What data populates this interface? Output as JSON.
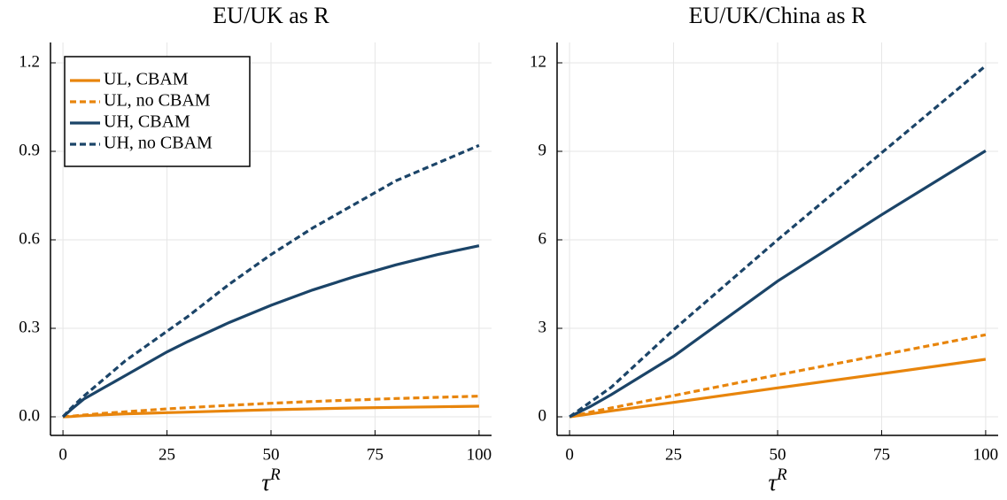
{
  "chart_data": [
    {
      "type": "line",
      "title": "EU/UK as R",
      "xlabel": "τ",
      "xlabel_superscript": "R",
      "x": [
        0,
        2,
        5,
        10,
        15,
        20,
        25,
        30,
        40,
        50,
        60,
        70,
        80,
        90,
        100
      ],
      "xlim": [
        -3,
        103
      ],
      "xticks": [
        0,
        25,
        50,
        75,
        100
      ],
      "ylim": [
        -0.063,
        1.269
      ],
      "yticks": [
        {
          "value": 0,
          "label": "0.0"
        },
        0.3,
        0.6,
        0.9,
        1.2
      ],
      "grid": true,
      "legend": "top-left",
      "series": [
        {
          "name": "UL, CBAM",
          "color": "#e8850c",
          "dash": false,
          "values": [
            0,
            0.001,
            0.004,
            0.007,
            0.01,
            0.012,
            0.014,
            0.016,
            0.02,
            0.024,
            0.027,
            0.03,
            0.032,
            0.034,
            0.036
          ]
        },
        {
          "name": "UL, no CBAM",
          "color": "#e8850c",
          "dash": true,
          "values": [
            0,
            0.002,
            0.006,
            0.012,
            0.017,
            0.022,
            0.027,
            0.031,
            0.039,
            0.046,
            0.052,
            0.057,
            0.062,
            0.066,
            0.07
          ]
        },
        {
          "name": "UH, CBAM",
          "color": "#1b4468",
          "dash": false,
          "values": [
            0,
            0.025,
            0.06,
            0.1,
            0.14,
            0.18,
            0.22,
            0.255,
            0.32,
            0.378,
            0.43,
            0.475,
            0.515,
            0.55,
            0.58
          ]
        },
        {
          "name": "UH, no CBAM",
          "color": "#1b4468",
          "dash": true,
          "values": [
            0,
            0.03,
            0.07,
            0.13,
            0.19,
            0.24,
            0.29,
            0.34,
            0.45,
            0.55,
            0.64,
            0.72,
            0.8,
            0.86,
            0.92
          ]
        }
      ]
    },
    {
      "type": "line",
      "title": "EU/UK/China as R",
      "xlabel": "τ",
      "xlabel_superscript": "R",
      "x": [
        0,
        5,
        10,
        25,
        50,
        75,
        100
      ],
      "xlim": [
        -3,
        103
      ],
      "xticks": [
        0,
        25,
        50,
        75,
        100
      ],
      "ylim": [
        -0.63,
        12.69
      ],
      "yticks": [
        0,
        3,
        6,
        9,
        12
      ],
      "grid": true,
      "series": [
        {
          "color": "#e8850c",
          "dash": false,
          "values": [
            0,
            0.1,
            0.2,
            0.49,
            0.98,
            1.46,
            1.95
          ]
        },
        {
          "color": "#e8850c",
          "dash": true,
          "values": [
            0,
            0.16,
            0.3,
            0.72,
            1.42,
            2.1,
            2.78
          ]
        },
        {
          "color": "#1b4468",
          "dash": false,
          "values": [
            0,
            0.35,
            0.75,
            2.05,
            4.6,
            6.85,
            9.02
          ]
        },
        {
          "color": "#1b4468",
          "dash": true,
          "values": [
            0,
            0.5,
            1.0,
            2.95,
            6.0,
            8.95,
            11.9
          ]
        }
      ]
    }
  ]
}
